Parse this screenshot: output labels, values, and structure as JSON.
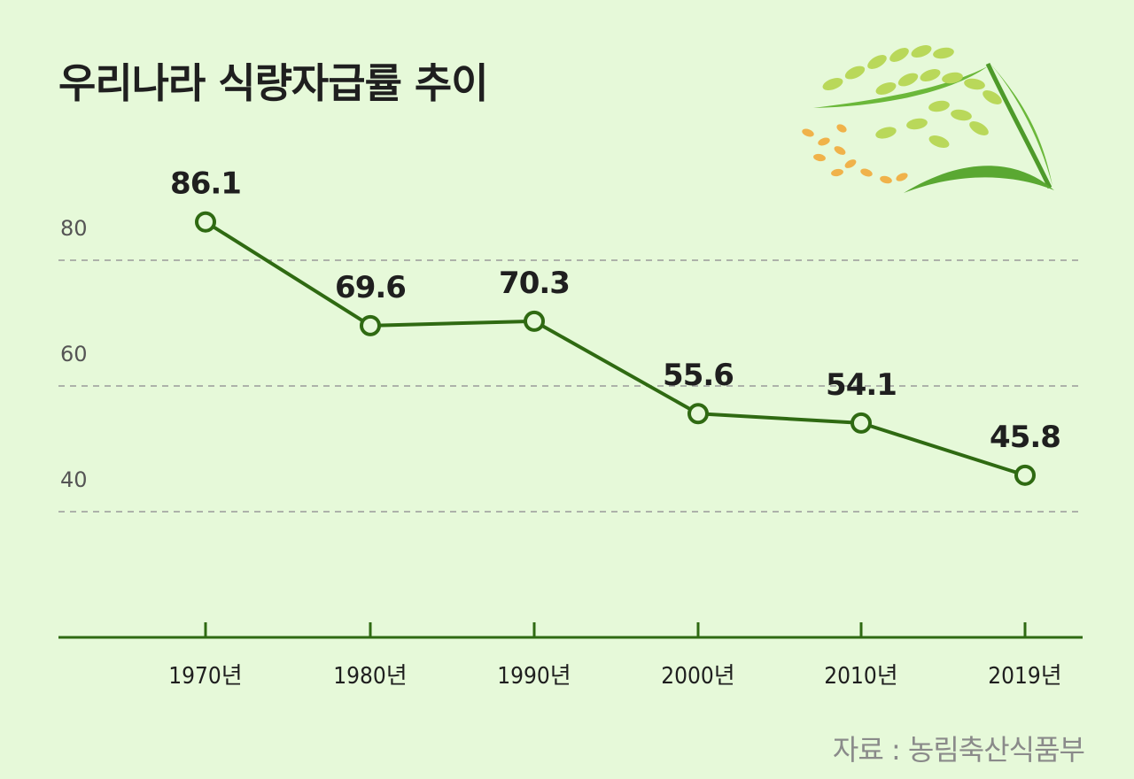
{
  "chart_data": {
    "type": "line",
    "title": "우리나라 식량자급률 추이",
    "categories": [
      "1970년",
      "1980년",
      "1990년",
      "2000년",
      "2010년",
      "2019년"
    ],
    "series": [
      {
        "values": [
          86.1,
          69.6,
          70.3,
          55.6,
          54.1,
          45.8
        ]
      }
    ],
    "data_labels": [
      "86.1",
      "69.6",
      "70.3",
      "55.6",
      "54.1",
      "45.8"
    ],
    "y_ticks": [
      40,
      60,
      80
    ],
    "ylim": [
      20,
      100
    ],
    "grid": "horizontal dashed",
    "source": "자료 : 농림축산식품부",
    "colors": {
      "background": "#E6F9D9",
      "line": "#2F6A12",
      "marker_fill": "#E6F9D9",
      "grid": "#9a9a9a",
      "axis": "#2F6A12"
    },
    "decoration_icon": "rice-plant-icon"
  }
}
